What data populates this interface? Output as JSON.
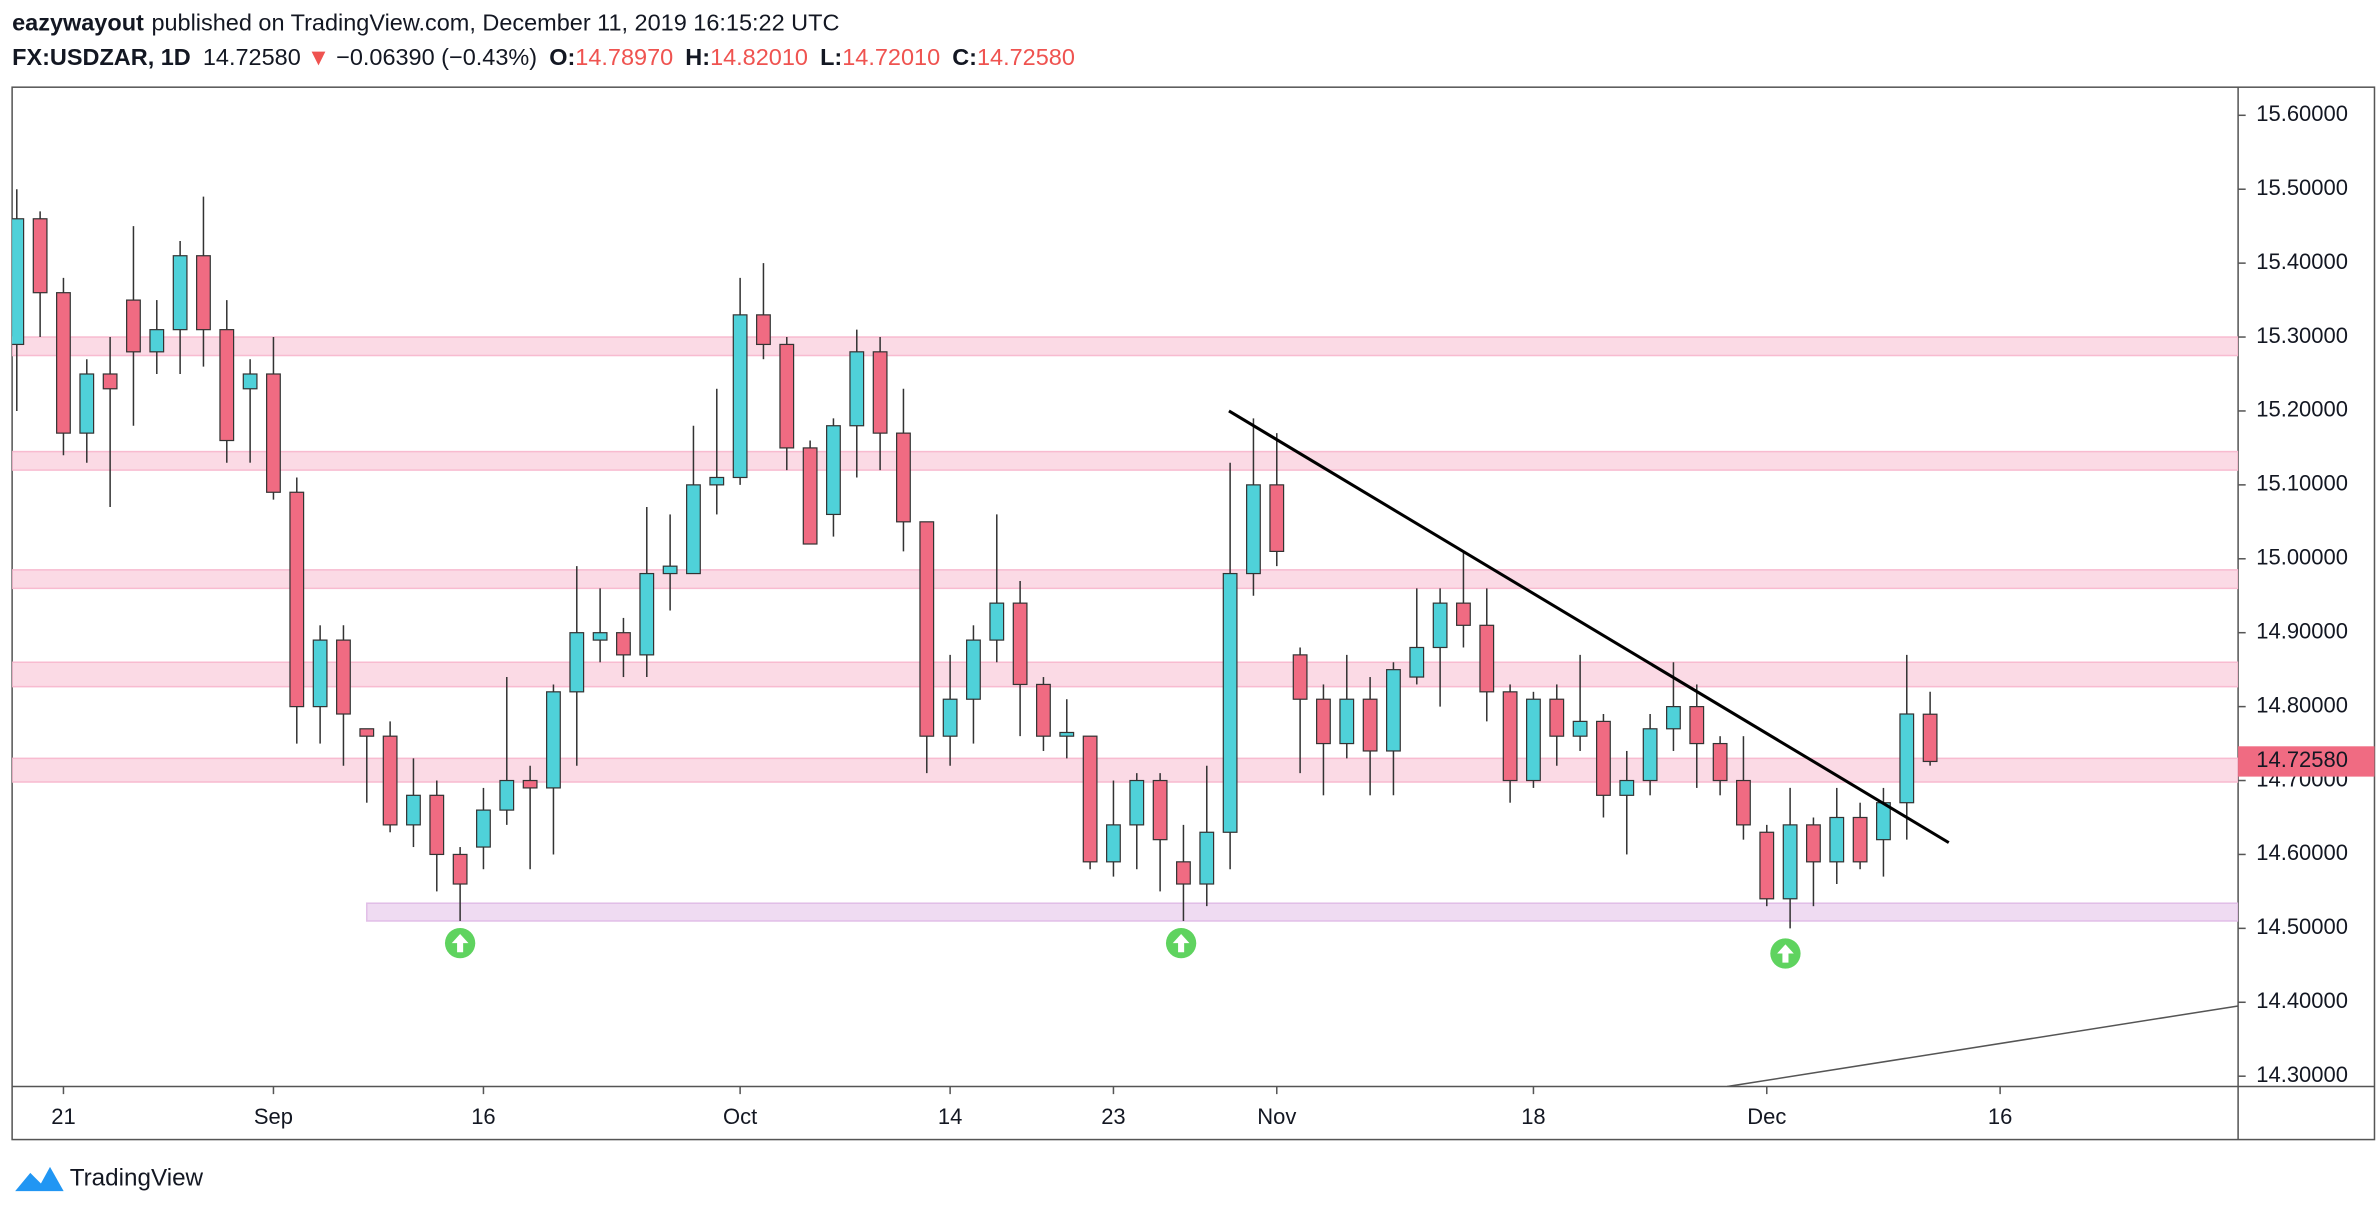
{
  "header": {
    "publisher": "eazywayout",
    "published_text": "published on TradingView.com, December 11, 2019 16:15:22 UTC",
    "symbol": "FX:USDZAR, 1D",
    "last": "14.72580",
    "direction": "▼",
    "change": "−0.06390 (−0.43%)",
    "o_label": "O:",
    "o_value": "14.78970",
    "h_label": "H:",
    "h_value": "14.82010",
    "l_label": "L:",
    "l_value": "14.72010",
    "c_label": "C:",
    "c_value": "14.72580"
  },
  "footer": {
    "brand": "TradingView"
  },
  "chart_data": {
    "type": "candlestick",
    "up_color": "#4fd1d9",
    "down_color": "#f06b82",
    "grid": false,
    "open": [
      15.29,
      15.46,
      15.36,
      15.17,
      15.25,
      15.35,
      15.28,
      15.31,
      15.41,
      15.31,
      15.23,
      15.25,
      15.09,
      14.8,
      14.89,
      14.77,
      14.76,
      14.64,
      14.68,
      14.6,
      14.61,
      14.66,
      14.7,
      14.69,
      14.82,
      14.89,
      14.9,
      14.87,
      14.98,
      14.98,
      15.1,
      15.11,
      15.33,
      15.29,
      15.15,
      15.06,
      15.18,
      15.28,
      15.17,
      15.05,
      14.76,
      14.81,
      14.89,
      14.94,
      14.83,
      14.76,
      14.76,
      14.59,
      14.64,
      14.7,
      14.59,
      14.56,
      14.63,
      14.98,
      15.1,
      14.87,
      14.81,
      14.75,
      14.81,
      14.74,
      14.84,
      14.88,
      14.94,
      14.91,
      14.82,
      14.7,
      14.81,
      14.76,
      14.78,
      14.68,
      14.7,
      14.77,
      14.8,
      14.75,
      14.7,
      14.63,
      14.54,
      14.64,
      14.59,
      14.65,
      14.62,
      14.67,
      14.7897
    ],
    "high": [
      15.5,
      15.47,
      15.38,
      15.27,
      15.3,
      15.45,
      15.35,
      15.43,
      15.49,
      15.35,
      15.27,
      15.3,
      15.11,
      14.91,
      14.91,
      14.77,
      14.78,
      14.73,
      14.7,
      14.61,
      14.69,
      14.84,
      14.72,
      14.83,
      14.99,
      14.96,
      14.92,
      15.07,
      15.06,
      15.18,
      15.23,
      15.38,
      15.4,
      15.3,
      15.16,
      15.19,
      15.31,
      15.3,
      15.23,
      15.05,
      14.87,
      14.91,
      15.06,
      14.97,
      14.84,
      14.81,
      14.76,
      14.7,
      14.71,
      14.71,
      14.64,
      14.72,
      15.13,
      15.19,
      15.17,
      14.88,
      14.83,
      14.87,
      14.84,
      14.86,
      14.96,
      14.96,
      15.01,
      14.96,
      14.83,
      14.82,
      14.83,
      14.87,
      14.79,
      14.74,
      14.79,
      14.86,
      14.83,
      14.76,
      14.76,
      14.64,
      14.69,
      14.65,
      14.69,
      14.67,
      14.69,
      14.87,
      14.8201
    ],
    "low": [
      15.2,
      15.3,
      15.14,
      15.13,
      15.07,
      15.18,
      15.25,
      15.25,
      15.26,
      15.13,
      15.13,
      15.08,
      14.75,
      14.75,
      14.72,
      14.67,
      14.63,
      14.61,
      14.55,
      14.51,
      14.58,
      14.64,
      14.58,
      14.6,
      14.72,
      14.86,
      14.84,
      14.84,
      14.93,
      14.98,
      15.06,
      15.1,
      15.27,
      15.12,
      15.02,
      15.03,
      15.11,
      15.12,
      15.01,
      14.71,
      14.72,
      14.75,
      14.86,
      14.76,
      14.74,
      14.73,
      14.58,
      14.57,
      14.58,
      14.55,
      14.51,
      14.53,
      14.58,
      14.95,
      14.99,
      14.71,
      14.68,
      14.73,
      14.68,
      14.68,
      14.83,
      14.8,
      14.88,
      14.78,
      14.67,
      14.69,
      14.72,
      14.74,
      14.65,
      14.6,
      14.68,
      14.74,
      14.69,
      14.68,
      14.62,
      14.53,
      14.5,
      14.53,
      14.56,
      14.58,
      14.57,
      14.62,
      14.7201
    ],
    "close": [
      15.46,
      15.36,
      15.17,
      15.25,
      15.23,
      15.28,
      15.31,
      15.41,
      15.31,
      15.16,
      15.25,
      15.09,
      14.8,
      14.89,
      14.79,
      14.76,
      14.64,
      14.68,
      14.6,
      14.56,
      14.66,
      14.7,
      14.69,
      14.82,
      14.9,
      14.9,
      14.87,
      14.98,
      14.99,
      15.1,
      15.11,
      15.33,
      15.29,
      15.15,
      15.02,
      15.18,
      15.28,
      15.17,
      15.05,
      14.76,
      14.81,
      14.89,
      14.94,
      14.83,
      14.76,
      14.765,
      14.59,
      14.64,
      14.7,
      14.62,
      14.56,
      14.63,
      14.98,
      15.1,
      15.01,
      14.81,
      14.75,
      14.81,
      14.74,
      14.85,
      14.88,
      14.94,
      14.91,
      14.82,
      14.7,
      14.81,
      14.76,
      14.78,
      14.68,
      14.7,
      14.77,
      14.8,
      14.75,
      14.7,
      14.64,
      14.54,
      14.64,
      14.59,
      14.65,
      14.59,
      14.67,
      14.79,
      14.7258
    ],
    "xlim": [
      -0.2,
      95.2
    ],
    "xticks": [
      {
        "value": 2,
        "label": "21"
      },
      {
        "value": 11,
        "label": "Sep"
      },
      {
        "value": 20,
        "label": "16"
      },
      {
        "value": 31,
        "label": "Oct"
      },
      {
        "value": 40,
        "label": "14"
      },
      {
        "value": 47,
        "label": "23"
      },
      {
        "value": 54,
        "label": "Nov"
      },
      {
        "value": 65,
        "label": "18"
      },
      {
        "value": 75,
        "label": "Dec"
      },
      {
        "value": 85,
        "label": "16"
      }
    ],
    "ylim": [
      14.286,
      15.637
    ],
    "yticks": [
      {
        "value": 14.3,
        "label": "14.30000"
      },
      {
        "value": 14.4,
        "label": "14.40000"
      },
      {
        "value": 14.5,
        "label": "14.50000"
      },
      {
        "value": 14.6,
        "label": "14.60000"
      },
      {
        "value": 14.7,
        "label": "14.70000"
      },
      {
        "value": 14.8,
        "label": "14.80000"
      },
      {
        "value": 14.9,
        "label": "14.90000"
      },
      {
        "value": 15.0,
        "label": "15.00000"
      },
      {
        "value": 15.1,
        "label": "15.10000"
      },
      {
        "value": 15.2,
        "label": "15.20000"
      },
      {
        "value": 15.3,
        "label": "15.30000"
      },
      {
        "value": 15.4,
        "label": "15.40000"
      },
      {
        "value": 15.5,
        "label": "15.50000"
      },
      {
        "value": 15.6,
        "label": "15.60000"
      }
    ],
    "last_price": {
      "value": 14.7258,
      "label": "14.72580",
      "color": "#f06b82"
    },
    "zones": [
      {
        "low": 15.275,
        "high": 15.3,
        "color": "#f8bbd0"
      },
      {
        "low": 15.12,
        "high": 15.145,
        "color": "#f8bbd0"
      },
      {
        "low": 14.96,
        "high": 14.985,
        "color": "#f8bbd0"
      },
      {
        "low": 14.827,
        "high": 14.86,
        "color": "#f8bbd0"
      },
      {
        "low": 14.698,
        "high": 14.73,
        "color": "#f8bbd0"
      },
      {
        "low": 14.51,
        "high": 14.534,
        "start": 15,
        "color": "#e1bee7"
      }
    ],
    "trendlines": [
      {
        "x": [
          51.95,
          82.8
        ],
        "y": [
          15.2,
          14.616
        ],
        "color": "#000000",
        "width": 2
      },
      {
        "x": [
          73.3,
          95.2
        ],
        "y": [
          14.286,
          14.395
        ],
        "color": "#555555",
        "width": 1
      }
    ],
    "signals": {
      "x": [
        19,
        49.9,
        75.8
      ],
      "y": [
        14.48,
        14.48,
        14.466
      ],
      "color": "#5fd35f"
    }
  }
}
